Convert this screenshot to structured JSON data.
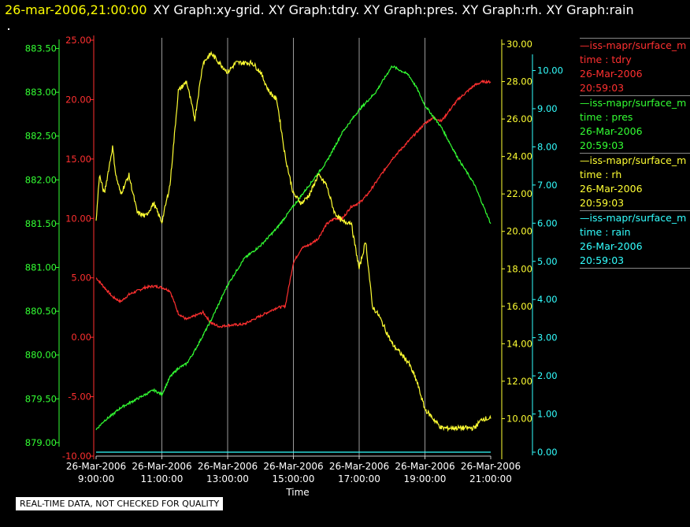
{
  "header": {
    "timestamp": "26-mar-2006,21:00:00",
    "graphs": "XY Graph:xy-grid.  XY Graph:tdry.  XY Graph:pres.  XY Graph:rh.  XY Graph:rain"
  },
  "footer": {
    "quality_note": "REAL-TIME DATA, NOT CHECKED FOR QUALITY"
  },
  "legend": [
    {
      "source": "—iss-mapr/surface_m",
      "var": "time : tdry",
      "date": "26-Mar-2006",
      "time": "20:59:03",
      "color": "#ff3030"
    },
    {
      "source": "—iss-mapr/surface_m",
      "var": "time : pres",
      "date": "26-Mar-2006",
      "time": "20:59:03",
      "color": "#33ff33"
    },
    {
      "source": "—iss-mapr/surface_m",
      "var": "time : rh",
      "date": "26-Mar-2006",
      "time": "20:59:03",
      "color": "#ffff33"
    },
    {
      "source": "—iss-mapr/surface_m",
      "var": "time : rain",
      "date": "26-Mar-2006",
      "time": "20:59:03",
      "color": "#33ffff"
    }
  ],
  "chart_data": {
    "type": "line",
    "xlabel": "Time",
    "x_ticks": [
      {
        "date": "26-Mar-2006",
        "time": "9:00:00",
        "hour": 9
      },
      {
        "date": "26-Mar-2006",
        "time": "11:00:00",
        "hour": 11
      },
      {
        "date": "26-Mar-2006",
        "time": "13:00:00",
        "hour": 13
      },
      {
        "date": "26-Mar-2006",
        "time": "15:00:00",
        "hour": 15
      },
      {
        "date": "26-Mar-2006",
        "time": "17:00:00",
        "hour": 17
      },
      {
        "date": "26-Mar-2006",
        "time": "19:00:00",
        "hour": 19
      },
      {
        "date": "26-Mar-2006",
        "time": "21:00:00",
        "hour": 21
      }
    ],
    "xlim": [
      9,
      21
    ],
    "grid": "vertical",
    "legend_placement": "right",
    "axes": {
      "tdry": {
        "color": "#ff3030",
        "ylim": [
          -10,
          25
        ],
        "ticks": [
          "-10.00",
          "-5.00",
          "0.00",
          "5.00",
          "10.00",
          "15.00",
          "20.00",
          "25.00"
        ]
      },
      "pres": {
        "color": "#33ff33",
        "ylim": [
          878.99,
          883.55
        ],
        "ticks": [
          "879.00",
          "879.50",
          "880.00",
          "880.50",
          "881.00",
          "881.50",
          "882.00",
          "882.50",
          "883.00",
          "883.50"
        ]
      },
      "rh": {
        "color": "#ffff33",
        "ylim": [
          8,
          30
        ],
        "ticks": [
          "10.00",
          "12.00",
          "14.00",
          "16.00",
          "18.00",
          "20.00",
          "22.00",
          "24.00",
          "26.00",
          "28.00",
          "30.00"
        ]
      },
      "rain": {
        "color": "#33ffff",
        "ylim": [
          0,
          10.3
        ],
        "ticks": [
          "0.00",
          "1.00",
          "2.00",
          "3.00",
          "4.00",
          "5.00",
          "6.00",
          "7.00",
          "8.00",
          "9.00",
          "10.00"
        ]
      }
    },
    "series": [
      {
        "axis": "tdry",
        "color": "#ff3030",
        "x": [
          9.0,
          9.25,
          9.5,
          9.75,
          10.0,
          10.25,
          10.5,
          10.75,
          11.0,
          11.25,
          11.5,
          11.75,
          12.0,
          12.25,
          12.5,
          12.75,
          13.0,
          13.5,
          14.0,
          14.5,
          14.75,
          15.0,
          15.25,
          15.5,
          15.75,
          16.0,
          16.25,
          16.5,
          16.75,
          17.0,
          17.25,
          17.5,
          18.0,
          18.5,
          19.0,
          19.25,
          19.5,
          20.0,
          20.5,
          20.75,
          21.0
        ],
        "y": [
          5.0,
          4.2,
          3.4,
          3.0,
          3.6,
          3.9,
          4.2,
          4.3,
          4.2,
          3.9,
          2.0,
          1.5,
          1.8,
          2.1,
          1.2,
          0.9,
          1.0,
          1.1,
          1.8,
          2.5,
          2.6,
          6.3,
          7.5,
          7.8,
          8.3,
          9.5,
          10.0,
          10.0,
          11.0,
          11.3,
          12.0,
          13.0,
          15.0,
          16.5,
          18.0,
          18.5,
          18.2,
          20.0,
          21.2,
          21.5,
          21.5
        ]
      },
      {
        "axis": "pres",
        "color": "#33ff33",
        "x": [
          9.0,
          9.25,
          9.5,
          9.75,
          10.0,
          10.25,
          10.5,
          10.75,
          11.0,
          11.25,
          11.5,
          11.75,
          12.0,
          12.5,
          13.0,
          13.5,
          14.0,
          14.5,
          15.0,
          15.5,
          16.0,
          16.5,
          17.0,
          17.5,
          18.0,
          18.5,
          18.75,
          19.0,
          19.5,
          20.0,
          20.5,
          21.0
        ],
        "y": [
          879.15,
          879.25,
          879.32,
          879.4,
          879.45,
          879.5,
          879.55,
          879.6,
          879.55,
          879.75,
          879.85,
          879.9,
          880.05,
          880.4,
          880.8,
          881.1,
          881.25,
          881.45,
          881.7,
          881.95,
          882.2,
          882.55,
          882.8,
          883.0,
          883.3,
          883.2,
          883.05,
          882.85,
          882.6,
          882.25,
          881.95,
          881.5
        ]
      },
      {
        "axis": "rh",
        "color": "#ffff33",
        "x": [
          9.0,
          9.1,
          9.25,
          9.5,
          9.6,
          9.75,
          10.0,
          10.25,
          10.5,
          10.75,
          11.0,
          11.25,
          11.5,
          11.75,
          12.0,
          12.25,
          12.5,
          12.75,
          13.0,
          13.25,
          13.5,
          13.75,
          14.0,
          14.25,
          14.5,
          14.75,
          15.0,
          15.25,
          15.5,
          15.75,
          16.0,
          16.25,
          16.5,
          16.75,
          17.0,
          17.2,
          17.4,
          17.6,
          18.0,
          18.5,
          18.75,
          19.0,
          19.25,
          19.5,
          20.0,
          20.5,
          20.75,
          21.0
        ],
        "y": [
          20.5,
          23.0,
          22.0,
          24.5,
          23.0,
          22.0,
          23.0,
          21.0,
          20.8,
          21.5,
          20.5,
          22.5,
          27.5,
          28.0,
          26.0,
          29.0,
          29.5,
          29.0,
          28.5,
          29.0,
          29.0,
          29.0,
          28.5,
          27.5,
          27.0,
          24.0,
          22.0,
          21.5,
          22.0,
          23.0,
          22.5,
          21.0,
          20.5,
          20.5,
          18.0,
          19.5,
          16.0,
          15.5,
          14.0,
          13.0,
          12.0,
          10.5,
          10.0,
          9.5,
          9.5,
          9.5,
          10.0,
          10.0
        ]
      },
      {
        "axis": "rain",
        "color": "#33ffff",
        "x": [
          9.0,
          21.0
        ],
        "y": [
          0.0,
          0.0
        ]
      }
    ]
  }
}
